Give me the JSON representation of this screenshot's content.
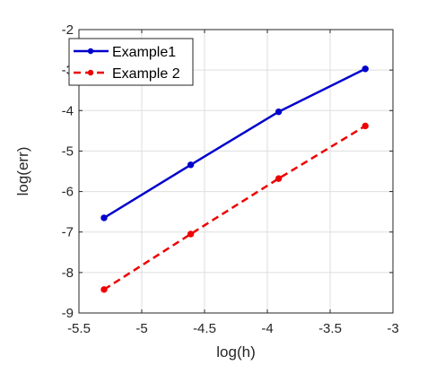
{
  "chart_data": {
    "type": "line",
    "title": "",
    "xlabel": "log(h)",
    "ylabel": "log(err)",
    "xlim": [
      -5.5,
      -3
    ],
    "ylim": [
      -9,
      -2
    ],
    "xticks": [
      -5.5,
      -5,
      -4.5,
      -4,
      -3.5,
      -3
    ],
    "yticks": [
      -2,
      -3,
      -4,
      -5,
      -6,
      -7,
      -8,
      -9
    ],
    "grid": true,
    "legend": "top-left",
    "series": [
      {
        "name": "Example1",
        "color": "#0000cc",
        "style": "solid",
        "marker": "circle",
        "x": [
          -5.3,
          -4.61,
          -3.91,
          -3.22
        ],
        "y": [
          -6.65,
          -5.34,
          -4.03,
          -2.97
        ]
      },
      {
        "name": "Example 2",
        "color": "#ee0000",
        "style": "dashed",
        "marker": "circle",
        "x": [
          -5.3,
          -4.61,
          -3.91,
          -3.22
        ],
        "y": [
          -8.42,
          -7.05,
          -5.68,
          -4.38
        ]
      }
    ]
  }
}
